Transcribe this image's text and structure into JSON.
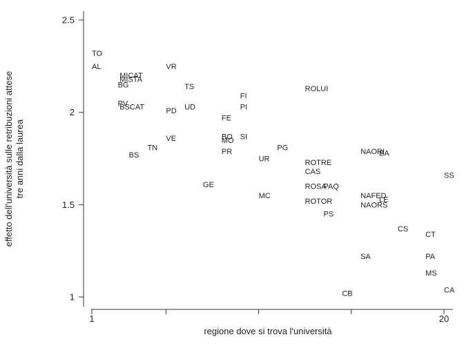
{
  "chart_data": {
    "type": "scatter",
    "title": "",
    "xlabel": "regione dove si trova l'università",
    "ylabel": [
      "effetto dell'università sulle retribuzioni attese",
      "tre anni dalla laurea"
    ],
    "xlim": [
      1,
      20
    ],
    "ylim": [
      1,
      2.5
    ],
    "x_ticks": [
      1,
      5,
      10,
      15,
      20
    ],
    "x_tick_labels": [
      "1",
      "",
      "",
      "",
      "20"
    ],
    "y_ticks": [
      1,
      1.5,
      2,
      2.5
    ],
    "y_tick_labels": [
      "1",
      "1.5",
      "2",
      "2.5"
    ],
    "grid": false,
    "marker": "label-only",
    "points": [
      {
        "label": "TO",
        "x": 1.0,
        "y": 2.32
      },
      {
        "label": "AL",
        "x": 1.0,
        "y": 2.25
      },
      {
        "label": "MICAT",
        "x": 2.5,
        "y": 2.2
      },
      {
        "label": "MISTA",
        "x": 2.5,
        "y": 2.18
      },
      {
        "label": "BG",
        "x": 2.4,
        "y": 2.15
      },
      {
        "label": "VR",
        "x": 5.0,
        "y": 2.25
      },
      {
        "label": "TS",
        "x": 6.0,
        "y": 2.14
      },
      {
        "label": "PV",
        "x": 2.4,
        "y": 2.05
      },
      {
        "label": "BSCAT",
        "x": 2.5,
        "y": 2.03
      },
      {
        "label": "PD",
        "x": 5.0,
        "y": 2.01
      },
      {
        "label": "UD",
        "x": 6.0,
        "y": 2.03
      },
      {
        "label": "FI",
        "x": 9.0,
        "y": 2.09
      },
      {
        "label": "PI",
        "x": 9.0,
        "y": 2.03
      },
      {
        "label": "FE",
        "x": 8.0,
        "y": 1.97
      },
      {
        "label": "ROLUI",
        "x": 12.5,
        "y": 2.13
      },
      {
        "label": "VE",
        "x": 5.0,
        "y": 1.86
      },
      {
        "label": "BO",
        "x": 8.0,
        "y": 1.87
      },
      {
        "label": "SI",
        "x": 9.0,
        "y": 1.87
      },
      {
        "label": "MO",
        "x": 8.0,
        "y": 1.85
      },
      {
        "label": "TN",
        "x": 4.0,
        "y": 1.81
      },
      {
        "label": "PR",
        "x": 8.0,
        "y": 1.79
      },
      {
        "label": "BS",
        "x": 3.0,
        "y": 1.77
      },
      {
        "label": "PG",
        "x": 11.0,
        "y": 1.81
      },
      {
        "label": "UR",
        "x": 10.0,
        "y": 1.75
      },
      {
        "label": "ROTRE",
        "x": 12.5,
        "y": 1.73
      },
      {
        "label": "NAORI",
        "x": 15.5,
        "y": 1.79
      },
      {
        "label": "BA",
        "x": 16.5,
        "y": 1.78
      },
      {
        "label": "CAS",
        "x": 12.5,
        "y": 1.68
      },
      {
        "label": "GE",
        "x": 7.0,
        "y": 1.61
      },
      {
        "label": "ROSA",
        "x": 12.5,
        "y": 1.6
      },
      {
        "label": "PAQ",
        "x": 13.5,
        "y": 1.6
      },
      {
        "label": "SS",
        "x": 20.0,
        "y": 1.66
      },
      {
        "label": "MC",
        "x": 10.0,
        "y": 1.55
      },
      {
        "label": "NAFED",
        "x": 15.5,
        "y": 1.55
      },
      {
        "label": "ROTOR",
        "x": 12.5,
        "y": 1.52
      },
      {
        "label": "LE",
        "x": 16.5,
        "y": 1.53
      },
      {
        "label": "NAORS",
        "x": 15.5,
        "y": 1.5
      },
      {
        "label": "PS",
        "x": 13.5,
        "y": 1.45
      },
      {
        "label": "CS",
        "x": 17.5,
        "y": 1.37
      },
      {
        "label": "CT",
        "x": 19.0,
        "y": 1.34
      },
      {
        "label": "SA",
        "x": 15.5,
        "y": 1.22
      },
      {
        "label": "PA",
        "x": 19.0,
        "y": 1.22
      },
      {
        "label": "MS",
        "x": 19.0,
        "y": 1.13
      },
      {
        "label": "CA",
        "x": 20.0,
        "y": 1.04
      },
      {
        "label": "CB",
        "x": 14.5,
        "y": 1.02
      }
    ]
  }
}
